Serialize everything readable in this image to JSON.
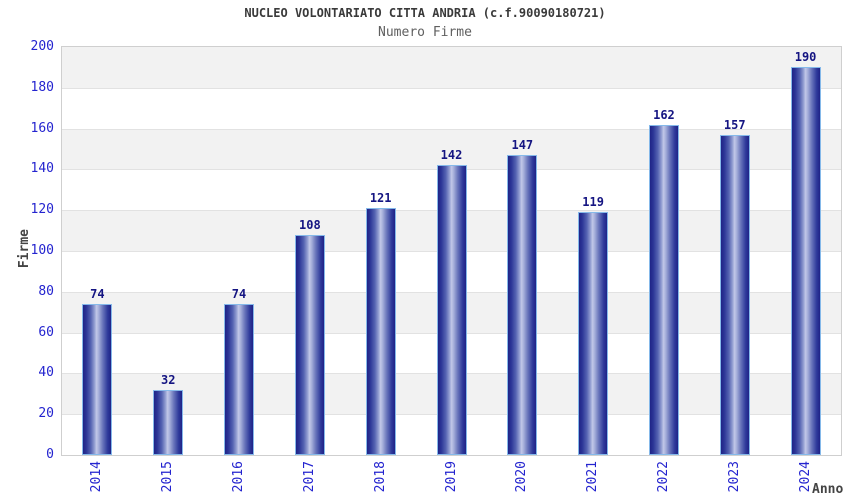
{
  "chart_data": {
    "type": "bar",
    "title": "NUCLEO VOLONTARIATO CITTA ANDRIA (c.f.90090180721)",
    "subtitle": "Numero Firme",
    "categories": [
      "2014",
      "2015",
      "2016",
      "2017",
      "2018",
      "2019",
      "2020",
      "2021",
      "2022",
      "2023",
      "2024"
    ],
    "values": [
      74,
      32,
      74,
      108,
      121,
      142,
      147,
      119,
      162,
      157,
      190
    ],
    "xlabel": "Anno",
    "ylabel": "Firme",
    "ylim": [
      0,
      200
    ],
    "ytick_step": 20,
    "grid": true,
    "legend_position": "none",
    "colors": {
      "bar_dark": "#1f2387",
      "bar_light": "#c2c8e8",
      "bar_border": "#85b9ea",
      "tick_label": "#2424cf",
      "value_label": "#151582",
      "band_gray": "#f2f2f2",
      "band_white": "#ffffff",
      "gridline": "#e2e2e2",
      "plot_border": "#cfcfcf",
      "title_color": "#3a3a3a",
      "subtitle_color": "#606060",
      "axis_title_color": "#444444",
      "background": "#ffffff"
    }
  }
}
